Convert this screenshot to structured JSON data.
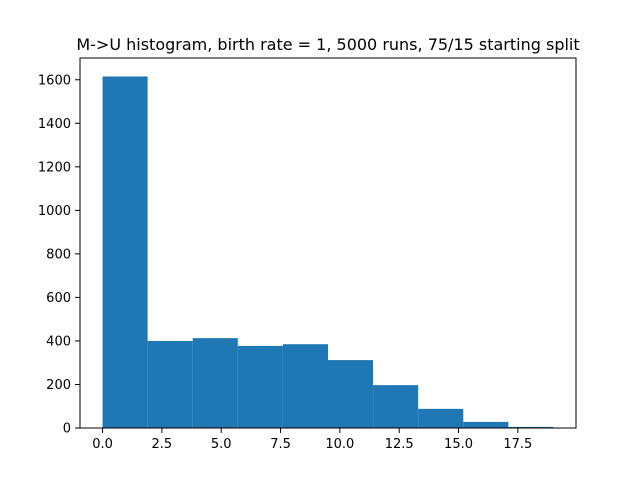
{
  "chart_data": {
    "type": "bar",
    "title": "M->U histogram, birth rate = 1, 5000 runs, 75/15 starting split",
    "xlabel": "",
    "ylabel": "",
    "bin_edges": [
      0,
      1.9,
      3.8,
      5.7,
      7.6,
      9.5,
      11.4,
      13.3,
      15.2,
      17.1,
      19.0
    ],
    "values": [
      1615,
      400,
      413,
      377,
      385,
      312,
      197,
      88,
      28,
      5
    ],
    "xlim": [
      -0.95,
      19.95
    ],
    "ylim": [
      0,
      1700
    ],
    "x_ticks": [
      0.0,
      2.5,
      5.0,
      7.5,
      10.0,
      12.5,
      15.0,
      17.5
    ],
    "x_tick_labels": [
      "0.0",
      "2.5",
      "5.0",
      "7.5",
      "10.0",
      "12.5",
      "15.0",
      "17.5"
    ],
    "y_ticks": [
      0,
      200,
      400,
      600,
      800,
      1000,
      1200,
      1400,
      1600
    ],
    "y_tick_labels": [
      "0",
      "200",
      "400",
      "600",
      "800",
      "1000",
      "1200",
      "1400",
      "1600"
    ],
    "bar_color": "#1f77b4",
    "grid": false,
    "legend": "none"
  }
}
